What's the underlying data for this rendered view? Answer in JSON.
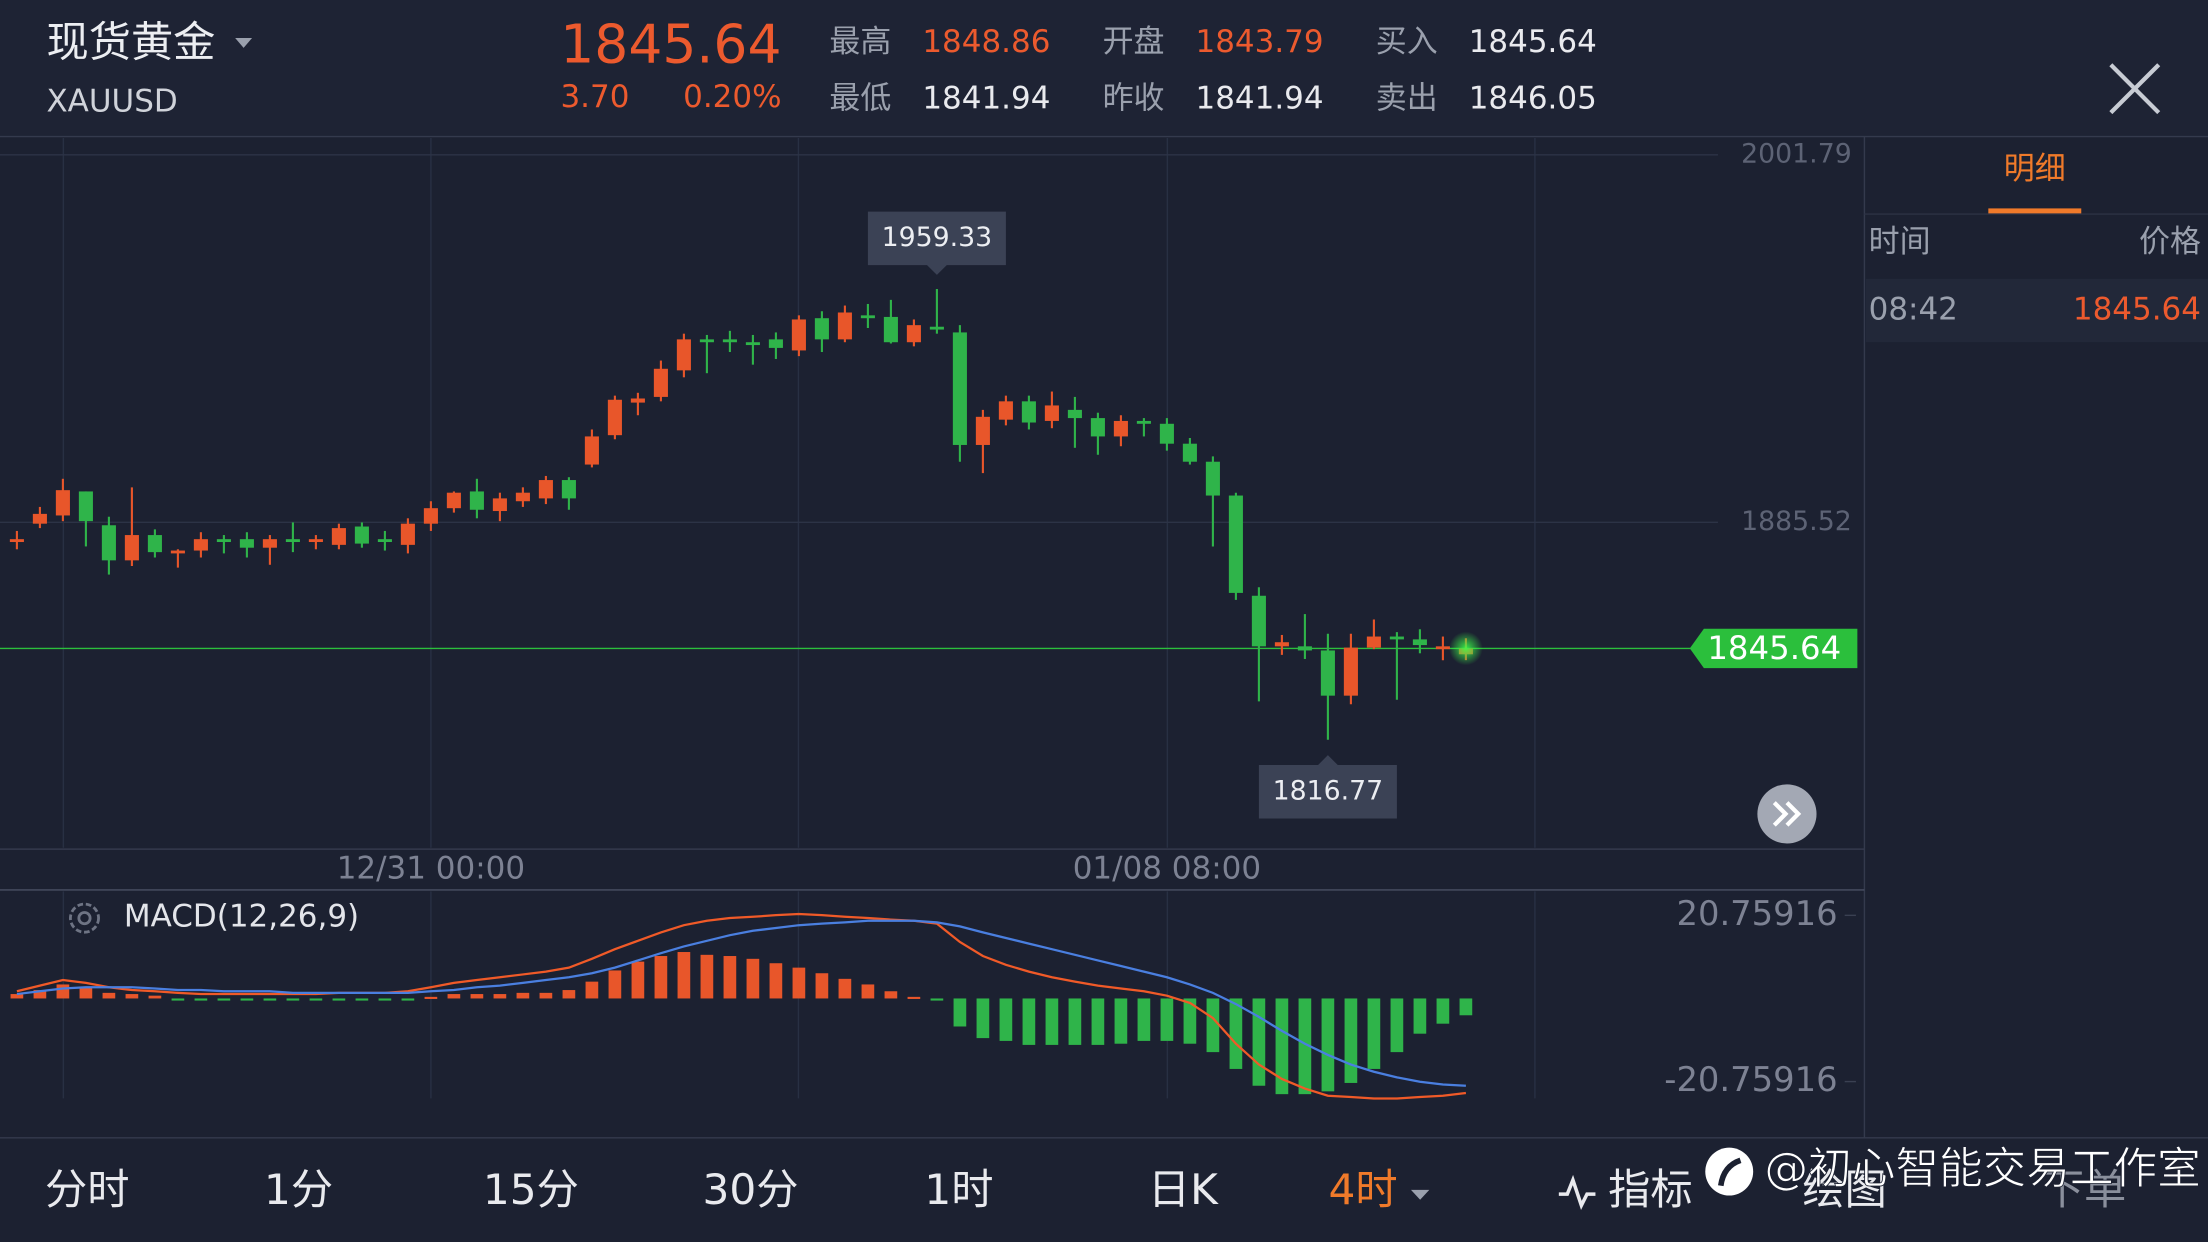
{
  "header": {
    "name": "现货黄金",
    "symbol": "XAUUSD",
    "price": "1845.64",
    "change": "3.70",
    "change_pct": "0.20%",
    "quotes": [
      {
        "label": "最高",
        "value": "1848.86",
        "color": "#ec5a2e"
      },
      {
        "label": "最低",
        "value": "1841.94",
        "color": "#e9eaee"
      },
      {
        "label": "开盘",
        "value": "1843.79",
        "color": "#ec5a2e"
      },
      {
        "label": "昨收",
        "value": "1841.94",
        "color": "#e9eaee"
      },
      {
        "label": "买入",
        "value": "1845.64",
        "color": "#e9eaee"
      },
      {
        "label": "卖出",
        "value": "1846.05",
        "color": "#e9eaee"
      }
    ]
  },
  "detail_panel": {
    "tab": "明细",
    "columns": [
      "时间",
      "价格"
    ],
    "rows": [
      [
        "08:42",
        "1845.64"
      ]
    ]
  },
  "chart_data": [
    {
      "type": "candlestick",
      "up_color": "#e8562a",
      "down_color": "#2fb44a",
      "categories": [
        null,
        null,
        null,
        null,
        null,
        null,
        null,
        null,
        null,
        null,
        null,
        null,
        null,
        null,
        null,
        null,
        null,
        null,
        "12/31 00:00",
        null,
        null,
        null,
        null,
        null,
        null,
        null,
        null,
        null,
        null,
        null,
        null,
        null,
        null,
        null,
        null,
        null,
        null,
        null,
        null,
        null,
        null,
        null,
        null,
        null,
        null,
        null,
        null,
        null,
        null,
        null,
        "01/08 08:00",
        null,
        null,
        null,
        null,
        null,
        null,
        null,
        null,
        null,
        null,
        null,
        null,
        null
      ],
      "ohlc": [
        [
          1879.3,
          1882.8,
          1877.0,
          1880.2
        ],
        [
          1885.1,
          1890.4,
          1883.7,
          1888.2
        ],
        [
          1887.7,
          1899.3,
          1885.9,
          1895.7
        ],
        [
          1895.3,
          1895.3,
          1877.9,
          1885.9
        ],
        [
          1884.6,
          1887.3,
          1869.0,
          1873.5
        ],
        [
          1873.5,
          1896.6,
          1871.7,
          1881.5
        ],
        [
          1881.5,
          1883.3,
          1874.4,
          1876.1
        ],
        [
          1875.7,
          1877.0,
          1871.2,
          1876.6
        ],
        [
          1876.6,
          1882.4,
          1874.4,
          1880.2
        ],
        [
          1880.2,
          1881.5,
          1875.7,
          1879.3
        ],
        [
          1880.2,
          1882.4,
          1874.4,
          1877.5
        ],
        [
          1877.5,
          1881.5,
          1872.1,
          1880.2
        ],
        [
          1880.2,
          1885.5,
          1876.1,
          1879.3
        ],
        [
          1879.3,
          1881.5,
          1877.0,
          1880.2
        ],
        [
          1878.4,
          1885.1,
          1877.0,
          1883.7
        ],
        [
          1884.2,
          1885.5,
          1877.5,
          1878.8
        ],
        [
          1880.2,
          1882.8,
          1876.6,
          1879.3
        ],
        [
          1878.4,
          1886.8,
          1875.7,
          1885.1
        ],
        [
          1885.1,
          1892.2,
          1882.8,
          1890.0
        ],
        [
          1890.0,
          1895.3,
          1888.6,
          1894.9
        ],
        [
          1895.3,
          1899.3,
          1886.8,
          1889.5
        ],
        [
          1889.1,
          1894.9,
          1885.9,
          1893.1
        ],
        [
          1892.2,
          1896.6,
          1890.4,
          1894.9
        ],
        [
          1893.1,
          1900.2,
          1891.3,
          1898.9
        ],
        [
          1898.9,
          1899.8,
          1889.5,
          1893.1
        ],
        [
          1903.8,
          1914.9,
          1902.9,
          1912.7
        ],
        [
          1913.1,
          1925.6,
          1911.8,
          1924.3
        ],
        [
          1923.4,
          1926.5,
          1919.4,
          1924.7
        ],
        [
          1925.2,
          1936.7,
          1923.8,
          1934.1
        ],
        [
          1933.6,
          1945.2,
          1931.4,
          1943.4
        ],
        [
          1943.4,
          1944.8,
          1932.7,
          1942.5
        ],
        [
          1943.4,
          1946.1,
          1939.4,
          1942.5
        ],
        [
          1942.5,
          1944.8,
          1935.4,
          1941.6
        ],
        [
          1943.4,
          1945.6,
          1937.2,
          1940.7
        ],
        [
          1939.9,
          1951.0,
          1938.1,
          1949.7
        ],
        [
          1950.1,
          1952.3,
          1939.4,
          1943.4
        ],
        [
          1943.4,
          1954.1,
          1942.5,
          1951.9
        ],
        [
          1951.0,
          1954.6,
          1947.0,
          1950.1
        ],
        [
          1950.5,
          1955.9,
          1942.1,
          1942.5
        ],
        [
          1942.5,
          1949.7,
          1941.2,
          1947.9
        ],
        [
          1947.4,
          1959.33,
          1945.2,
          1946.5
        ],
        [
          1945.6,
          1947.9,
          1904.7,
          1910.0
        ],
        [
          1910.0,
          1921.1,
          1901.1,
          1918.9
        ],
        [
          1918.0,
          1925.6,
          1916.2,
          1923.8
        ],
        [
          1923.8,
          1925.6,
          1914.9,
          1917.1
        ],
        [
          1917.6,
          1926.9,
          1915.3,
          1922.5
        ],
        [
          1921.1,
          1925.2,
          1909.1,
          1918.5
        ],
        [
          1918.5,
          1920.2,
          1906.9,
          1912.7
        ],
        [
          1912.7,
          1919.4,
          1909.6,
          1917.6
        ],
        [
          1917.6,
          1918.5,
          1912.7,
          1916.7
        ],
        [
          1916.7,
          1918.5,
          1908.2,
          1910.4
        ],
        [
          1910.4,
          1912.2,
          1903.8,
          1904.7
        ],
        [
          1904.7,
          1906.4,
          1877.9,
          1894.0
        ],
        [
          1894.0,
          1894.9,
          1861.0,
          1863.2
        ],
        [
          1862.3,
          1865.0,
          1828.9,
          1846.3
        ],
        [
          1846.3,
          1849.9,
          1843.6,
          1847.6
        ],
        [
          1846.3,
          1856.5,
          1842.3,
          1845.0
        ],
        [
          1845.0,
          1850.3,
          1816.77,
          1830.7
        ],
        [
          1830.7,
          1850.3,
          1828.0,
          1845.9
        ],
        [
          1845.9,
          1854.8,
          1845.4,
          1849.4
        ],
        [
          1849.4,
          1850.8,
          1829.4,
          1848.5
        ],
        [
          1848.5,
          1851.7,
          1844.1,
          1846.7
        ],
        [
          1845.4,
          1849.4,
          1841.9,
          1846.3
        ],
        [
          1843.79,
          1848.86,
          1841.94,
          1845.64
        ]
      ],
      "ylim": [
        1782.6,
        2007.1
      ],
      "yticks": [
        1885.52,
        2001.79
      ],
      "grid": true,
      "last_price": 1845.64,
      "last_price_color": "#2bbf3c",
      "high_label": 1959.33,
      "low_label": 1816.77
    },
    {
      "type": "macd",
      "title": "MACD(12,26,9)",
      "ylim": [
        -34.8,
        27.1
      ],
      "yticks": [
        20.75916,
        -20.75916
      ],
      "histogram": {
        "up_color": "#e8562a",
        "down_color": "#2fb44a",
        "values": [
          1.1,
          2.1,
          3.5,
          2.8,
          1.4,
          1.1,
          0.7,
          -0.4,
          -0.4,
          -0.4,
          -0.4,
          -0.4,
          -0.4,
          -0.4,
          -0.4,
          -0.4,
          -0.4,
          -0.4,
          0.4,
          1.1,
          1.1,
          1.1,
          1.4,
          1.4,
          2.1,
          4.2,
          7.0,
          9.2,
          10.6,
          11.6,
          10.9,
          10.6,
          9.9,
          8.8,
          7.7,
          6.3,
          4.9,
          3.5,
          1.8,
          0.4,
          -0.4,
          -7.0,
          -9.9,
          -10.6,
          -11.6,
          -11.6,
          -11.6,
          -11.6,
          -11.3,
          -10.6,
          -10.6,
          -11.3,
          -13.4,
          -17.6,
          -21.8,
          -23.9,
          -23.9,
          -23.2,
          -21.1,
          -17.6,
          -13.4,
          -8.8,
          -6.3,
          -4.2
        ]
      },
      "series": [
        {
          "color": "#f05a28",
          "values": [
            1.8,
            3.2,
            4.6,
            3.9,
            2.8,
            2.1,
            1.8,
            1.4,
            1.1,
            1.1,
            1.1,
            1.1,
            1.1,
            1.1,
            1.4,
            1.4,
            1.4,
            1.8,
            2.8,
            3.9,
            4.6,
            5.3,
            6.0,
            6.7,
            7.7,
            9.9,
            12.3,
            14.4,
            16.5,
            18.3,
            19.4,
            20.1,
            20.4,
            20.8,
            21.1,
            20.8,
            20.4,
            20.1,
            19.7,
            19.4,
            18.7,
            14.1,
            10.6,
            8.4,
            6.7,
            5.3,
            4.2,
            3.2,
            2.5,
            1.8,
            0.7,
            -1.1,
            -4.9,
            -11.3,
            -16.5,
            -20.1,
            -22.5,
            -24.3,
            -24.6,
            -25.0,
            -25.0,
            -24.6,
            -24.3,
            -23.6
          ]
        },
        {
          "color": "#4a7fe0",
          "values": [
            1.1,
            1.8,
            2.5,
            2.8,
            2.8,
            2.8,
            2.5,
            2.1,
            2.1,
            1.8,
            1.8,
            1.8,
            1.4,
            1.4,
            1.4,
            1.4,
            1.4,
            1.4,
            1.8,
            2.1,
            2.8,
            3.2,
            3.9,
            4.6,
            5.3,
            6.3,
            7.7,
            9.5,
            11.3,
            13.0,
            14.4,
            15.8,
            16.9,
            17.6,
            18.3,
            18.7,
            19.0,
            19.4,
            19.4,
            19.4,
            19.0,
            18.0,
            16.5,
            15.1,
            13.7,
            12.3,
            10.9,
            9.5,
            8.1,
            6.7,
            5.3,
            3.5,
            1.4,
            -1.4,
            -4.6,
            -8.1,
            -11.3,
            -14.1,
            -16.5,
            -18.3,
            -19.7,
            -20.8,
            -21.5,
            -21.8
          ]
        }
      ]
    }
  ],
  "toolbar": [
    {
      "label": "分时",
      "color": "#e9eaee"
    },
    {
      "label": "1分",
      "color": "#e9eaee"
    },
    {
      "label": "15分",
      "color": "#e9eaee"
    },
    {
      "label": "30分",
      "color": "#e9eaee"
    },
    {
      "label": "1时",
      "color": "#e9eaee"
    },
    {
      "label": "日K",
      "color": "#e9eaee"
    },
    {
      "label": "4时",
      "color": "#f07a2a"
    },
    {
      "label": "指标",
      "color": "#e9eaee"
    },
    {
      "label": "绘图",
      "color": "#e9eaee"
    },
    {
      "label": "下单",
      "color": "#8a8f9c"
    }
  ],
  "watermark": "@初心智能交易工作室"
}
